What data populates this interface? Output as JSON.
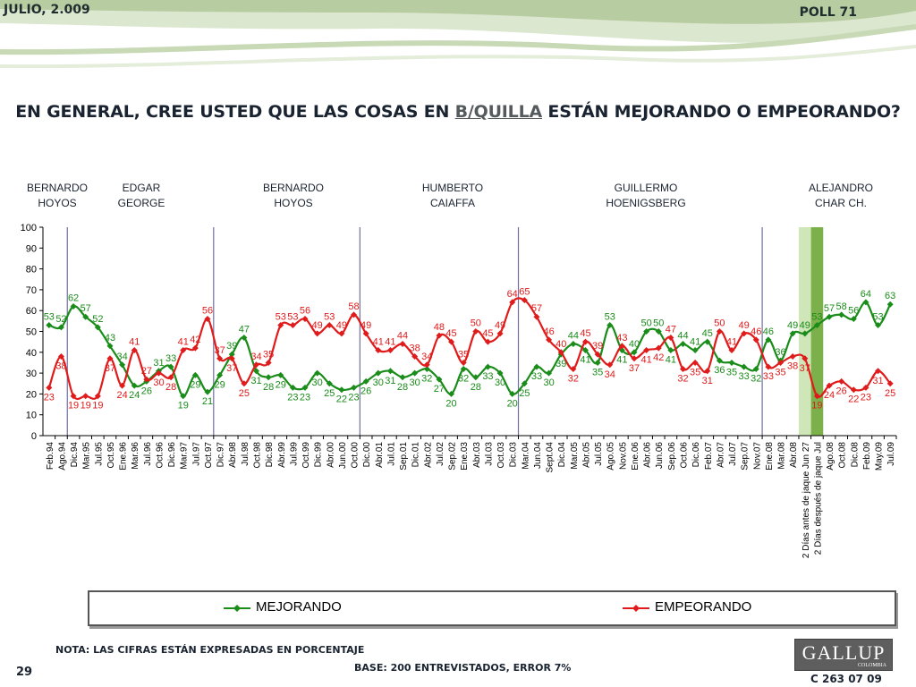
{
  "header": {
    "date": "JULIO, 2.009",
    "poll": "POLL 71"
  },
  "title": {
    "prefix": "EN GENERAL, CREE USTED QUE LAS COSAS EN ",
    "city": "B/QUILLA",
    "suffix": " ESTÁN MEJORANDO O EMPEORANDO?"
  },
  "mayors": [
    {
      "line1": "BERNARDO",
      "line2": "HOYOS"
    },
    {
      "line1": "EDGAR",
      "line2": "GEORGE"
    },
    {
      "line1": "BERNARDO",
      "line2": "HOYOS"
    },
    {
      "line1": "HUMBERTO",
      "line2": "CAIAFFA"
    },
    {
      "line1": "GUILLERMO",
      "line2": "HOENIGSBERG"
    },
    {
      "line1": "ALEJANDRO",
      "line2": "CHAR CH."
    }
  ],
  "legend": {
    "series1": "MEJORANDO",
    "series2": "EMPEORANDO"
  },
  "footer": {
    "note": "NOTA: LAS CIFRAS ESTÁN EXPRESADAS EN PORCENTAJE",
    "base": "BASE: 200 ENTREVISTADOS, ERROR 7%",
    "page": "29",
    "code": "C 263 07 09",
    "logo": "GALLUP",
    "logo_sub": "COLOMBIA"
  },
  "colors": {
    "mejorando": "#1a8c1a",
    "empeorando": "#e01b1b",
    "mayor_divider": "#6f6f9f",
    "highlight_light": "#cfe6b8",
    "highlight_dark": "#7bb04a"
  },
  "chart_data": {
    "type": "line",
    "ylim": [
      0,
      100
    ],
    "yticks": [
      "0",
      "10",
      "20",
      "30",
      "40",
      "50",
      "60",
      "70",
      "80",
      "90",
      "100"
    ],
    "categories": [
      "Feb.94",
      "Ago.94",
      "Dic.94",
      "Mar.95",
      "Jul.95",
      "Oct.95",
      "Ene.96",
      "Mar.96",
      "Jul.96",
      "Oct.96",
      "Dic.96",
      "Mar.97",
      "Jul.97",
      "Oct.97",
      "Dic.97",
      "Abr.98",
      "Jul.98",
      "Oct.98",
      "Dic.98",
      "Abr.99",
      "Jul.99",
      "Oct.99",
      "Dic.99",
      "Abr.00",
      "Jun.00",
      "Oct.00",
      "Dic.00",
      "Abr.01",
      "Jul.01",
      "Sep.01",
      "Dic.01",
      "Abr.02",
      "Jul.02",
      "Sep.02",
      "Ene.03",
      "Abr.03",
      "Jul.03",
      "Oct.03",
      "Dic.03",
      "Mar.04",
      "Jun.04",
      "Sept.04",
      "Dic.04",
      "Mar.05",
      "Abr.05",
      "Jul.05",
      "Ago.05",
      "Nov.05",
      "Ene.06",
      "Abr.06",
      "Jun.06",
      "Sep.06",
      "Oct.06",
      "Dic.06",
      "Feb.07",
      "Abr.07",
      "Jul.07",
      "Sep.07",
      "Nov.07",
      "Ene.08",
      "Mar.08",
      "Abr.08",
      "2 Días antes de jaque Jun 27",
      "2 Días después de jaque Jul",
      "Ago.08",
      "Oct.08",
      "Dic.08",
      "Feb.09",
      "May.09",
      "Jul.09"
    ],
    "series": [
      {
        "name": "MEJORANDO",
        "values": [
          53,
          52,
          62,
          57,
          52,
          43,
          34,
          24,
          26,
          31,
          33,
          19,
          29,
          21,
          29,
          39,
          47,
          31,
          28,
          29,
          23,
          23,
          30,
          25,
          22,
          23,
          26,
          30,
          31,
          28,
          30,
          32,
          27,
          20,
          32,
          28,
          33,
          30,
          20,
          25,
          33,
          30,
          39,
          44,
          41,
          35,
          53,
          41,
          40,
          50,
          50,
          41,
          44,
          41,
          45,
          36,
          35,
          33,
          32,
          46,
          36,
          49,
          49,
          53,
          57,
          58,
          56,
          64,
          53,
          63
        ]
      },
      {
        "name": "EMPEORANDO",
        "values": [
          23,
          38,
          19,
          19,
          19,
          37,
          24,
          41,
          27,
          30,
          28,
          41,
          42,
          56,
          37,
          37,
          25,
          34,
          35,
          53,
          53,
          56,
          49,
          53,
          49,
          58,
          49,
          41,
          41,
          44,
          38,
          34,
          48,
          45,
          35,
          50,
          45,
          49,
          64,
          65,
          57,
          46,
          40,
          32,
          45,
          39,
          34,
          43,
          37,
          41,
          42,
          47,
          32,
          35,
          31,
          50,
          41,
          49,
          46,
          33,
          35,
          38,
          37,
          19,
          24,
          26,
          22,
          23,
          31,
          25
        ]
      }
    ]
  }
}
